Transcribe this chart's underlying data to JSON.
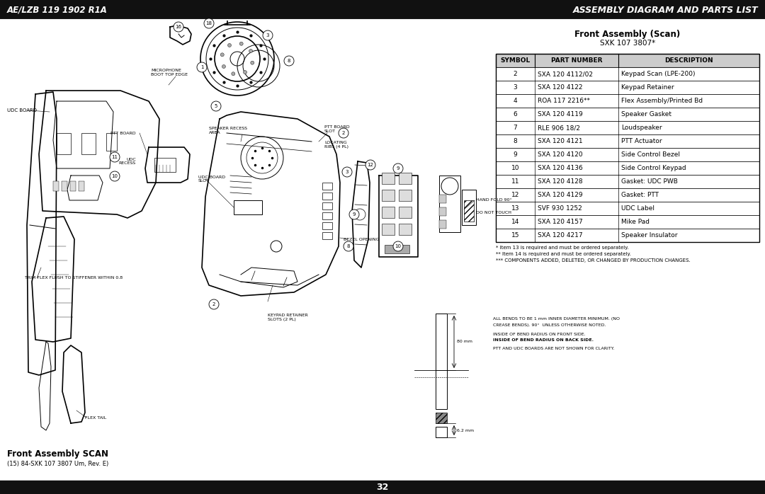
{
  "header_left": "AE/LZB 119 1902 R1A",
  "header_right": "ASSEMBLY DIAGRAM AND PARTS LIST",
  "table_title_line1": "Front Assembly (Scan)",
  "table_title_line2": "SXK 107 3807*",
  "table_headers": [
    "SYMBOL",
    "PART NUMBER",
    "DESCRIPTION"
  ],
  "table_rows": [
    [
      "2",
      "SXA 120 4112/02",
      "Keypad Scan (LPE-200)"
    ],
    [
      "3",
      "SXA 120 4122",
      "Keypad Retainer"
    ],
    [
      "4",
      "ROA 117 2216**",
      "Flex Assembly/Printed Bd"
    ],
    [
      "6",
      "SXA 120 4119",
      "Speaker Gasket"
    ],
    [
      "7",
      "RLE 906 18/2",
      "Loudspeaker"
    ],
    [
      "8",
      "SXA 120 4121",
      "PTT Actuator"
    ],
    [
      "9",
      "SXA 120 4120",
      "Side Control Bezel"
    ],
    [
      "10",
      "SXA 120 4136",
      "Side Control Keypad"
    ],
    [
      "11",
      "SXA 120 4128",
      "Gasket: UDC PWB"
    ],
    [
      "12",
      "SXA 120 4129",
      "Gasket: PTT"
    ],
    [
      "13",
      "SVF 930 1252",
      "UDC Label"
    ],
    [
      "14",
      "SXA 120 4157",
      "Mike Pad"
    ],
    [
      "15",
      "SXA 120 4217",
      "Speaker Insulator"
    ]
  ],
  "footnote1": "* Item 13 is required and must be ordered separately.",
  "footnote2": "** Item 14 is required and must be ordered separately.",
  "footnote3": "*** COMPONENTS ADDED, DELETED, OR CHANGED BY PRODUCTION CHANGES.",
  "footer_title": "Front Assembly SCAN",
  "footer_subtitle": "(15) 84-SXK 107 3807 Um, Rev. E)",
  "footer_page": "32",
  "bg_color": "#ffffff",
  "header_bg": "#111111",
  "header_text_color": "#ffffff",
  "table_header_bg": "#cccccc",
  "table_border_color": "#000000",
  "body_text_color": "#000000",
  "footer_bg": "#111111",
  "footer_text_color": "#ffffff",
  "lc": "#000000",
  "lc_thin": "#333333"
}
